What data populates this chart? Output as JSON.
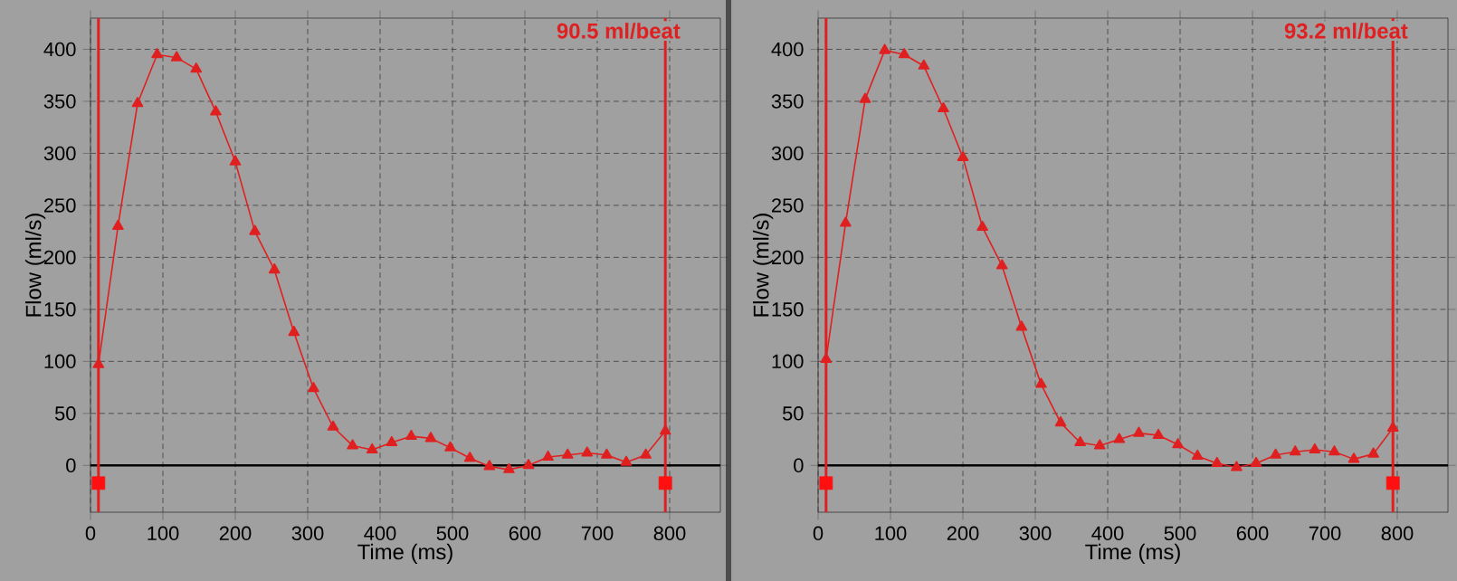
{
  "chart_data": [
    {
      "type": "line",
      "xlabel": "Time (ms)",
      "ylabel": "Flow (ml/s)",
      "annotations": [
        "90.5 ml/beat"
      ],
      "xlim": [
        0,
        870
      ],
      "ylim": [
        -45,
        430
      ],
      "xticks": [
        0,
        100,
        200,
        300,
        400,
        500,
        600,
        700,
        800
      ],
      "yticks": [
        0,
        50,
        100,
        150,
        200,
        250,
        300,
        350,
        400
      ],
      "grid": true,
      "marker": "triangle",
      "ref_lines": [
        {
          "axis": "y",
          "value": 0,
          "color": "#000000"
        },
        {
          "axis": "x",
          "value": 11,
          "color": "#e02020"
        },
        {
          "axis": "x",
          "value": 794,
          "color": "#e02020"
        }
      ],
      "series": [
        {
          "color": "#e02020",
          "x": [
            11,
            38,
            65,
            92,
            119,
            146,
            173,
            200,
            227,
            254,
            281,
            308,
            335,
            362,
            389,
            416,
            443,
            470,
            497,
            524,
            551,
            578,
            605,
            632,
            659,
            686,
            713,
            740,
            767,
            794
          ],
          "values": [
            97,
            230,
            348,
            395,
            392,
            381,
            340,
            292,
            225,
            188,
            128,
            74,
            37,
            19,
            15,
            22,
            28,
            26,
            17,
            7,
            -1,
            -4,
            0,
            8,
            10,
            12,
            10,
            3,
            10,
            33
          ]
        },
        {
          "type": "scatter",
          "marker": "square",
          "color": "#ff1010",
          "x": [
            11,
            794
          ],
          "values": [
            -17,
            -17
          ]
        }
      ]
    },
    {
      "type": "line",
      "xlabel": "Time (ms)",
      "ylabel": "Flow (ml/s)",
      "annotations": [
        "93.2 ml/beat"
      ],
      "xlim": [
        0,
        870
      ],
      "ylim": [
        -45,
        430
      ],
      "xticks": [
        0,
        100,
        200,
        300,
        400,
        500,
        600,
        700,
        800
      ],
      "yticks": [
        0,
        50,
        100,
        150,
        200,
        250,
        300,
        350,
        400
      ],
      "grid": true,
      "marker": "triangle",
      "ref_lines": [
        {
          "axis": "y",
          "value": 0,
          "color": "#000000"
        },
        {
          "axis": "x",
          "value": 11,
          "color": "#e02020"
        },
        {
          "axis": "x",
          "value": 794,
          "color": "#e02020"
        }
      ],
      "series": [
        {
          "color": "#e02020",
          "x": [
            11,
            38,
            65,
            92,
            119,
            146,
            173,
            200,
            227,
            254,
            281,
            308,
            335,
            362,
            389,
            416,
            443,
            470,
            497,
            524,
            551,
            578,
            605,
            632,
            659,
            686,
            713,
            740,
            767,
            794
          ],
          "values": [
            102,
            233,
            352,
            399,
            395,
            384,
            343,
            296,
            229,
            192,
            133,
            78,
            41,
            22,
            19,
            25,
            31,
            29,
            20,
            9,
            2,
            -2,
            2,
            10,
            13,
            15,
            13,
            6,
            11,
            36
          ]
        },
        {
          "type": "scatter",
          "marker": "square",
          "color": "#ff1010",
          "x": [
            11,
            794
          ],
          "values": [
            -17,
            -17
          ]
        }
      ]
    }
  ]
}
